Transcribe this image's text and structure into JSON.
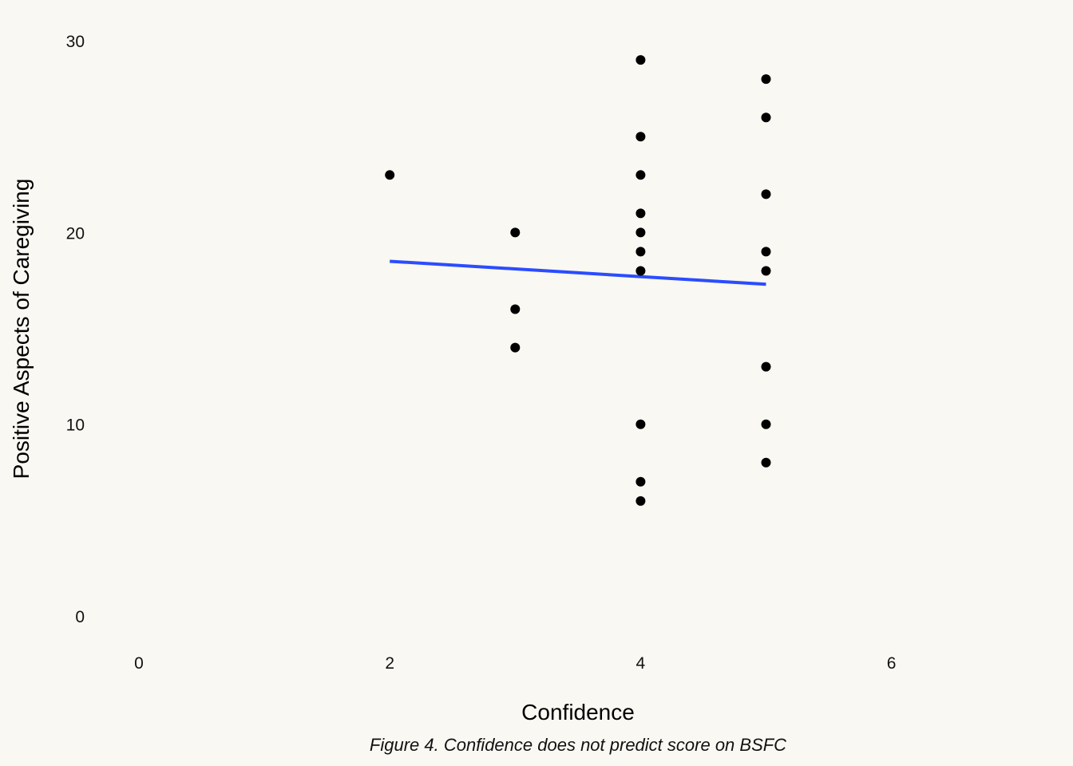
{
  "chart_data": {
    "type": "scatter",
    "xlabel": "Confidence",
    "ylabel": "Positive Aspects of Caregiving",
    "caption": "Figure 4. Confidence does not predict score on BSFC",
    "xlim": [
      0,
      7
    ],
    "ylim": [
      0,
      30
    ],
    "xticks": [
      0,
      2,
      4,
      6
    ],
    "yticks": [
      0,
      10,
      20,
      30
    ],
    "grid": false,
    "points": [
      {
        "x": 2,
        "y": 23
      },
      {
        "x": 3,
        "y": 20
      },
      {
        "x": 3,
        "y": 16
      },
      {
        "x": 3,
        "y": 14
      },
      {
        "x": 4,
        "y": 29
      },
      {
        "x": 4,
        "y": 25
      },
      {
        "x": 4,
        "y": 23
      },
      {
        "x": 4,
        "y": 21
      },
      {
        "x": 4,
        "y": 20
      },
      {
        "x": 4,
        "y": 19
      },
      {
        "x": 4,
        "y": 18
      },
      {
        "x": 4,
        "y": 10
      },
      {
        "x": 4,
        "y": 7
      },
      {
        "x": 4,
        "y": 6
      },
      {
        "x": 5,
        "y": 28
      },
      {
        "x": 5,
        "y": 26
      },
      {
        "x": 5,
        "y": 22
      },
      {
        "x": 5,
        "y": 19
      },
      {
        "x": 5,
        "y": 18
      },
      {
        "x": 5,
        "y": 13
      },
      {
        "x": 5,
        "y": 10
      },
      {
        "x": 5,
        "y": 8
      }
    ],
    "fit_line": {
      "x": [
        2,
        5
      ],
      "y": [
        18.5,
        17.3
      ]
    },
    "colors": {
      "points": "#000000",
      "fit_line": "#2b4cff",
      "background": "#f9f8f2"
    }
  }
}
